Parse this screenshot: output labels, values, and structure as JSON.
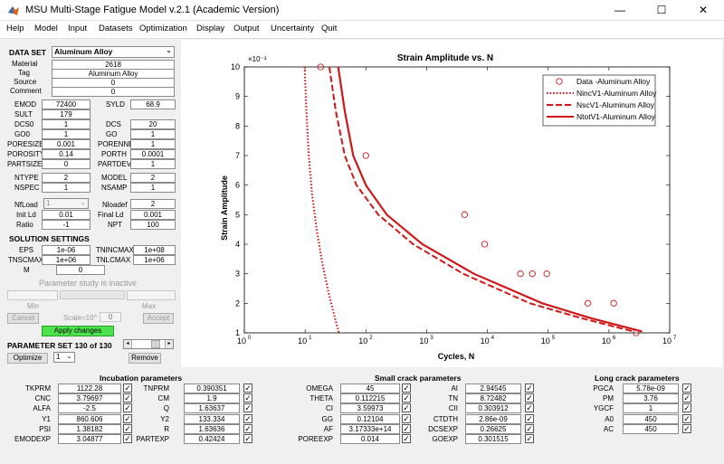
{
  "window": {
    "title": "MSU Multi-Stage Fatigue Model v.2.1 (Academic Version)",
    "minimize": "—",
    "maximize": "☐",
    "close": "✕"
  },
  "menu": [
    "Help",
    "Model",
    "Input",
    "Datasets",
    "Optimization",
    "Display",
    "Output",
    "Uncertainty",
    "Quit"
  ],
  "dataset": {
    "label": "DATA SET",
    "selected": "Aluminum Alloy",
    "material_label": "Material",
    "material": "2618",
    "tag_label": "Tag",
    "tag": "Aluminum Alloy",
    "source_label": "Source",
    "source": "0",
    "comment_label": "Comment",
    "comment": "0"
  },
  "params_left": [
    {
      "l1": "EMOD",
      "v1": "72400",
      "l2": "SYLD",
      "v2": "68.9"
    },
    {
      "l1": "SULT",
      "v1": "179"
    },
    {
      "l1": "DCS0",
      "v1": "1",
      "l2": "DCS",
      "v2": "20"
    },
    {
      "l1": "GO0",
      "v1": "1",
      "l2": "GO",
      "v2": "1"
    },
    {
      "l1": "PORESIZE",
      "v1": "0.001",
      "l2": "PORENND",
      "v2": "1"
    },
    {
      "l1": "POROSITY",
      "v1": "0.14",
      "l2": "PORTH",
      "v2": "0.0001"
    },
    {
      "l1": "PARTSIZE",
      "v1": "0",
      "l2": "PARTDEV",
      "v2": "1"
    },
    {
      "l1": "NTYPE",
      "v1": "2",
      "l2": "MODEL",
      "v2": "2"
    },
    {
      "l1": "NSPEC",
      "v1": "1",
      "l2": "NSAMP",
      "v2": "1"
    }
  ],
  "load": {
    "nfload_label": "NfLoad",
    "nfload": "1",
    "nloadef_label": "Nloadef",
    "nloadef": "2",
    "initld_label": "Init Ld",
    "initld": "0.01",
    "finalld_label": "Final Ld",
    "finalld": "0.001",
    "ratio_label": "Ratio",
    "ratio": "-1",
    "npt_label": "NPT",
    "npt": "100"
  },
  "solution": {
    "label": "SOLUTION SETTINGS",
    "eps_label": "EPS",
    "eps": "1e-06",
    "tnincmax_label": "TNINCMAX",
    "tnincmax": "1e+08",
    "tnscmax_label": "TNSCMAX",
    "tnscmax": "1e+06",
    "tnlcmax_label": "TNLCMAX",
    "tnlcmax": "1e+06",
    "m_label": "M",
    "m": "0"
  },
  "study": {
    "status": "Parameter study is inactive",
    "min_label": "Min",
    "max_label": "Max",
    "cancel": "Cancel",
    "scale": "Scale=10^",
    "scale_value": "0",
    "accept": "Accept",
    "apply": "Apply changes"
  },
  "paramset": {
    "label": "PARAMETER SET 130 of 130",
    "optimize": "Optimize",
    "select": "1",
    "remove": "Remove"
  },
  "chart_data": {
    "type": "line",
    "title": "Strain Amplitude vs. N",
    "xlabel": "Cycles, N",
    "ylabel": "Strain Amplitude",
    "yexponent": "×10⁻³",
    "xscale": "log",
    "xlim": [
      1,
      10000000
    ],
    "ylim": [
      1,
      10
    ],
    "xticks": [
      "10^0",
      "10^1",
      "10^2",
      "10^3",
      "10^4",
      "10^5",
      "10^6",
      "10^7"
    ],
    "yticks": [
      "1",
      "2",
      "3",
      "4",
      "5",
      "6",
      "7",
      "8",
      "9",
      "10"
    ],
    "grid": false,
    "legend_position": "top-right",
    "color": "#d01818",
    "series": [
      {
        "name": "Data -Aluminum Alloy",
        "style": "marker",
        "points": [
          [
            18,
            10
          ],
          [
            100,
            7
          ],
          [
            4200,
            5
          ],
          [
            9000,
            4
          ],
          [
            35000,
            3
          ],
          [
            55000,
            3
          ],
          [
            95000,
            3
          ],
          [
            450000,
            2
          ],
          [
            1200000,
            2
          ],
          [
            2800000,
            1
          ]
        ]
      },
      {
        "name": "NincV1-Aluminum Alloy",
        "style": "dotted",
        "points": [
          [
            9.8,
            10
          ],
          [
            10.5,
            8.5
          ],
          [
            11.5,
            7
          ],
          [
            13,
            5.7
          ],
          [
            15.5,
            4.5
          ],
          [
            19,
            3.4
          ],
          [
            24,
            2.4
          ],
          [
            31,
            1.5
          ],
          [
            36,
            1
          ]
        ]
      },
      {
        "name": "NscV1-Aluminum Alloy",
        "style": "dashed",
        "points": [
          [
            25,
            10
          ],
          [
            32,
            8.5
          ],
          [
            45,
            7
          ],
          [
            70,
            6
          ],
          [
            160,
            5
          ],
          [
            600,
            4
          ],
          [
            4000,
            3
          ],
          [
            50000,
            2
          ],
          [
            350000,
            1.5
          ],
          [
            2500000,
            1.05
          ]
        ]
      },
      {
        "name": "NtotV1-Aluminum Alloy",
        "style": "solid",
        "points": [
          [
            35,
            10
          ],
          [
            45,
            8.5
          ],
          [
            62,
            7
          ],
          [
            100,
            6
          ],
          [
            220,
            5
          ],
          [
            850,
            4
          ],
          [
            6000,
            3
          ],
          [
            80000,
            2
          ],
          [
            500000,
            1.5
          ],
          [
            3500000,
            1.05
          ]
        ]
      }
    ]
  },
  "incubation": {
    "title": "Incubation parameters",
    "rows": [
      {
        "l1": "TKPRM",
        "v1": "1122.28",
        "l2": "TNPRM",
        "v2": "0.390351"
      },
      {
        "l1": "CNC",
        "v1": "3.79697",
        "l2": "CM",
        "v2": "1.9"
      },
      {
        "l1": "ALFA",
        "v1": "-2.5",
        "l2": "Q",
        "v2": "1.63637"
      },
      {
        "l1": "Y1",
        "v1": "860.606",
        "l2": "Y2",
        "v2": "133.334"
      },
      {
        "l1": "PSI",
        "v1": "1.38182",
        "l2": "R",
        "v2": "1.63636"
      },
      {
        "l1": "EMODEXP",
        "v1": "3.04877",
        "l2": "PARTEXP",
        "v2": "0.42424"
      }
    ]
  },
  "smallcrack": {
    "title": "Small crack parameters",
    "rows": [
      {
        "l1": "OMEGA",
        "v1": "45",
        "l2": "AI",
        "v2": "2.94545"
      },
      {
        "l1": "THETA",
        "v1": "0.112215",
        "l2": "TN",
        "v2": "8.72482"
      },
      {
        "l1": "CI",
        "v1": "3.59973",
        "l2": "CII",
        "v2": "0.303912"
      },
      {
        "l1": "GG",
        "v1": "0.12104",
        "l2": "CTDTH",
        "v2": "2.86e-09"
      },
      {
        "l1": "AF",
        "v1": "3.17333e+14",
        "l2": "DCSEXP",
        "v2": "0.26625"
      },
      {
        "l1": "POREEXP",
        "v1": "0.014",
        "l2": "GOEXP",
        "v2": "0.301515"
      }
    ]
  },
  "longcrack": {
    "title": "Long crack parameters",
    "rows": [
      {
        "l1": "PGCA",
        "v1": "5.78e-09"
      },
      {
        "l1": "PM",
        "v1": "3.76"
      },
      {
        "l1": "YGCF",
        "v1": "1"
      },
      {
        "l1": "A0",
        "v1": "450"
      },
      {
        "l1": "AC",
        "v1": "450"
      }
    ]
  },
  "check": "✓"
}
